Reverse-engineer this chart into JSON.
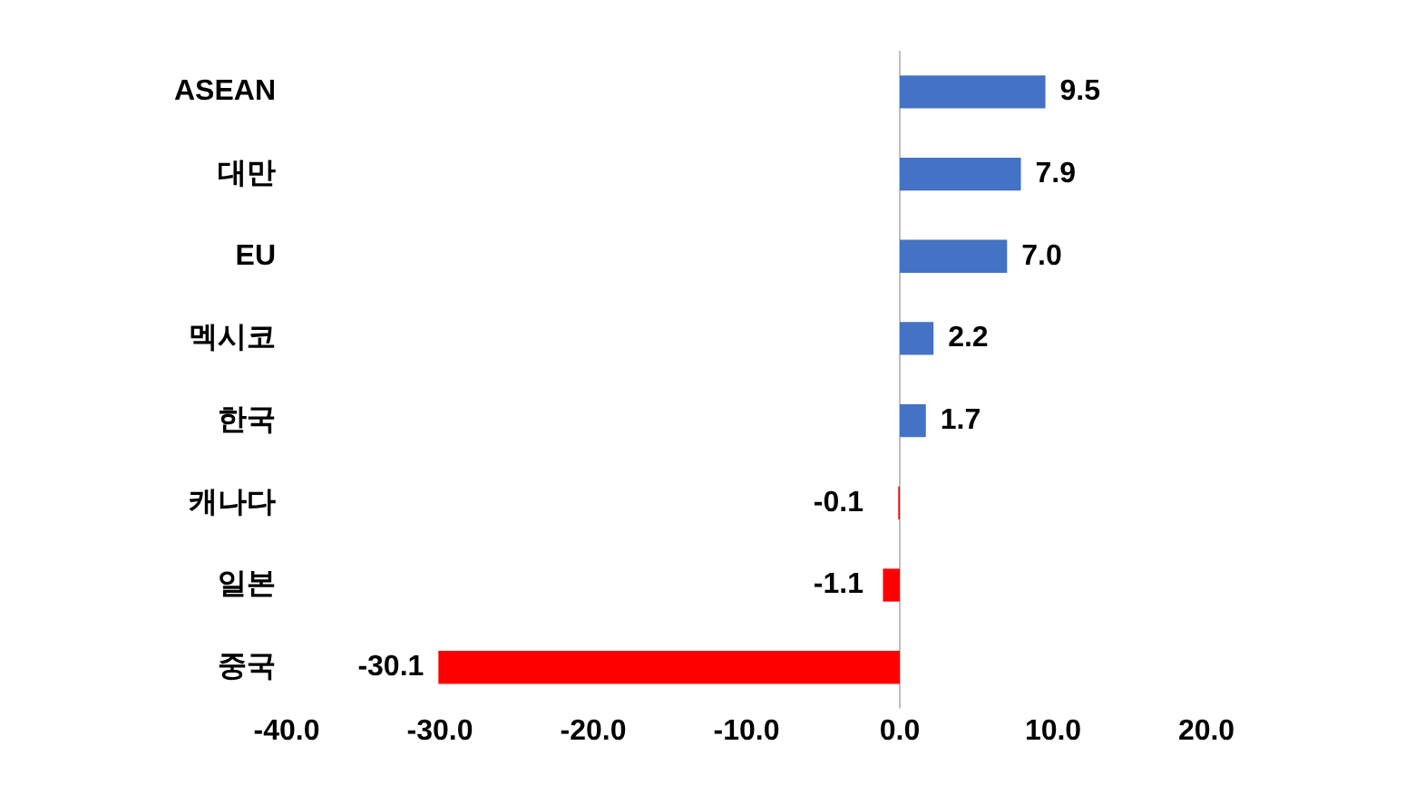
{
  "chart_data": {
    "type": "bar",
    "orientation": "horizontal",
    "categories": [
      "ASEAN",
      "대만",
      "EU",
      "멕시코",
      "한국",
      "캐나다",
      "일본",
      "중국"
    ],
    "values": [
      9.5,
      7.9,
      7.0,
      2.2,
      1.7,
      -0.1,
      -1.1,
      -30.1
    ],
    "colors": [
      "#4472c4",
      "#4472c4",
      "#4472c4",
      "#4472c4",
      "#4472c4",
      "#ff0000",
      "#ff0000",
      "#ff0000"
    ],
    "value_labels": [
      "9.5",
      "7.9",
      "7.0",
      "2.2",
      "1.7",
      "-0.1",
      "-1.1",
      "-30.1"
    ],
    "xlim": [
      -40,
      20
    ],
    "xticks": [
      {
        "value": -40,
        "label": "-40.0"
      },
      {
        "value": -30,
        "label": "-30.0"
      },
      {
        "value": -20,
        "label": "-20.0"
      },
      {
        "value": -10,
        "label": "-10.0"
      },
      {
        "value": 0,
        "label": "0.0"
      },
      {
        "value": 10,
        "label": "10.0"
      },
      {
        "value": 20,
        "label": "20.0"
      }
    ],
    "ref_lines": [
      {
        "axis": "x",
        "value": 0,
        "color": "#bfbfbf"
      }
    ],
    "grid": false,
    "legend": false
  }
}
